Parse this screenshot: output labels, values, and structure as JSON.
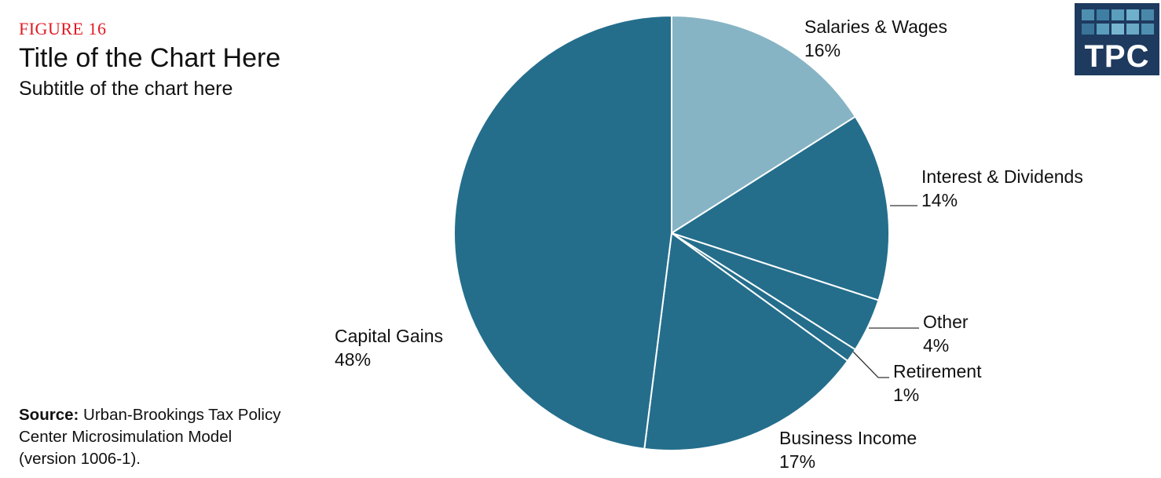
{
  "figure_label": "FIGURE 16",
  "title": "Title of the Chart Here",
  "subtitle": "Subtitle of the chart here",
  "source": {
    "label": "Source:",
    "text": "Urban-Brookings Tax Policy Center Microsimulation Model (version 1006-1)."
  },
  "logo": {
    "text": "TPC",
    "icon": "tpc-logo-grid"
  },
  "colors": {
    "salaries": "#86b4c4",
    "dark": "#246e8c",
    "logo_bg": "#1e3a5f",
    "figure_label": "#e01a22"
  },
  "chart_data": {
    "type": "pie",
    "slices": [
      {
        "label": "Salaries & Wages",
        "value": 16,
        "display": "16%"
      },
      {
        "label": "Interest & Dividends",
        "value": 14,
        "display": "14%"
      },
      {
        "label": "Other",
        "value": 4,
        "display": "4%"
      },
      {
        "label": "Retirement",
        "value": 1,
        "display": "1%"
      },
      {
        "label": "Business Income",
        "value": 17,
        "display": "17%"
      },
      {
        "label": "Capital Gains",
        "value": 48,
        "display": "48%"
      }
    ],
    "start": "12 o'clock",
    "direction": "clockwise"
  }
}
